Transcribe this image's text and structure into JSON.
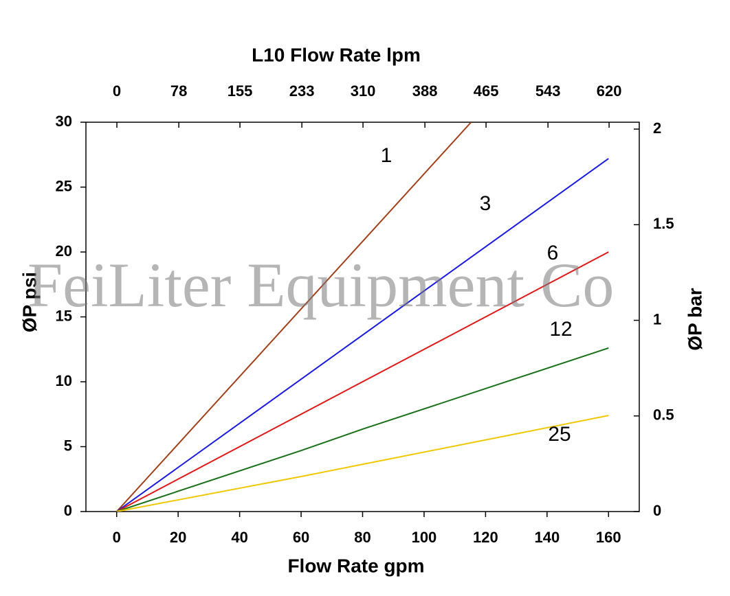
{
  "chart_data": {
    "type": "line",
    "title": "L10  Flow Rate lpm",
    "x_label": "Flow Rate gpm",
    "y_label": "ØP psi",
    "y2_label": "ØP bar",
    "watermark": "FeiLiter Equipment Co",
    "xlim": [
      -10,
      170
    ],
    "xticks": [
      0,
      20,
      40,
      60,
      80,
      100,
      120,
      140,
      160
    ],
    "x2lim": [
      -39,
      658
    ],
    "x2ticks": [
      0,
      78,
      155,
      233,
      310,
      388,
      465,
      543,
      620
    ],
    "ylim": [
      0,
      30
    ],
    "yticks": [
      0,
      5,
      10,
      15,
      20,
      25,
      30
    ],
    "y2lim": [
      0,
      2.036
    ],
    "y2ticks": [
      0,
      0.5,
      1,
      1.5,
      2
    ],
    "grid": false,
    "series": [
      {
        "name": "1",
        "color": "#a0401a",
        "x": [
          0,
          115.3
        ],
        "values": [
          0,
          30
        ]
      },
      {
        "name": "3",
        "color": "#1a1ae0",
        "x": [
          0,
          160
        ],
        "values": [
          0,
          27.2
        ]
      },
      {
        "name": "6",
        "color": "#e01818",
        "x": [
          0,
          160
        ],
        "values": [
          0,
          20
        ]
      },
      {
        "name": "12",
        "color": "#187018",
        "x": [
          0,
          60,
          80,
          160
        ],
        "values": [
          0,
          4.7,
          6.35,
          12.6
        ]
      },
      {
        "name": "25",
        "color": "#f0c800",
        "x": [
          0,
          60,
          160
        ],
        "values": [
          0,
          2.7,
          7.4
        ]
      }
    ]
  }
}
